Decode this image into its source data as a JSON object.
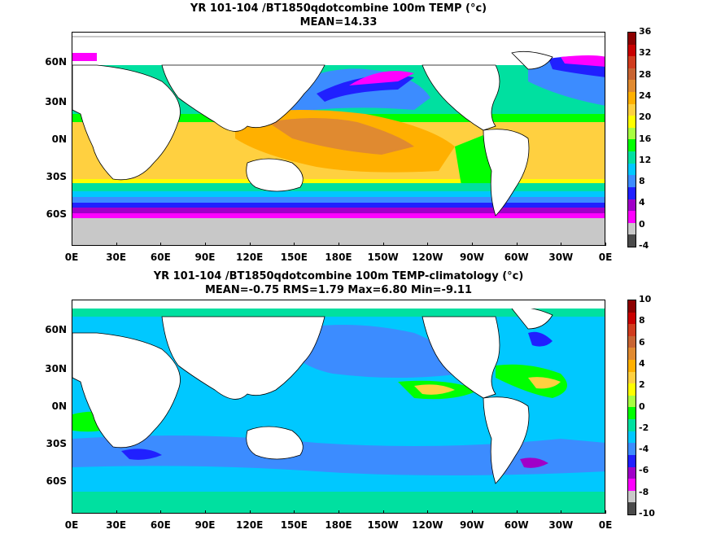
{
  "panel1": {
    "title_line1": "YR 101-104 /BT1850qdotcombine 100m TEMP (°c)",
    "title_line2": "MEAN=14.33",
    "colorbar": [
      "36",
      "32",
      "28",
      "24",
      "20",
      "16",
      "12",
      "8",
      "4",
      "0",
      "-4"
    ],
    "colors": [
      "#4a4a4a",
      "#c8c8c8",
      "#ff00ff",
      "#a000c8",
      "#2020ff",
      "#3c8cff",
      "#00c8ff",
      "#00e0a0",
      "#00ff00",
      "#a8ff40",
      "#ffff00",
      "#ffd040",
      "#ffb000",
      "#e08a30",
      "#c86432",
      "#d03c1e",
      "#c80000",
      "#8c0000"
    ]
  },
  "panel2": {
    "title_line1": "YR 101-104 /BT1850qdotcombine 100m TEMP-climatology (°c)",
    "title_line2": "MEAN=-0.75   RMS=1.79   Max=6.80   Min=-9.11",
    "colorbar": [
      "10",
      "8",
      "6",
      "4",
      "2",
      "0",
      "-2",
      "-4",
      "-6",
      "-8",
      "-10"
    ],
    "colors": [
      "#4a4a4a",
      "#c8c8c8",
      "#ff00ff",
      "#a000c8",
      "#2020ff",
      "#3c8cff",
      "#00c8ff",
      "#00e0a0",
      "#00ff00",
      "#a8ff40",
      "#ffff00",
      "#ffd040",
      "#ffb000",
      "#e08a30",
      "#c86432",
      "#d03c1e",
      "#c80000",
      "#8c0000"
    ]
  },
  "lat_labels": [
    "60N",
    "30N",
    "0N",
    "30S",
    "60S"
  ],
  "lon_labels": [
    "0E",
    "30E",
    "60E",
    "90E",
    "120E",
    "150E",
    "180E",
    "150W",
    "120W",
    "90W",
    "60W",
    "30W",
    "0E"
  ]
}
